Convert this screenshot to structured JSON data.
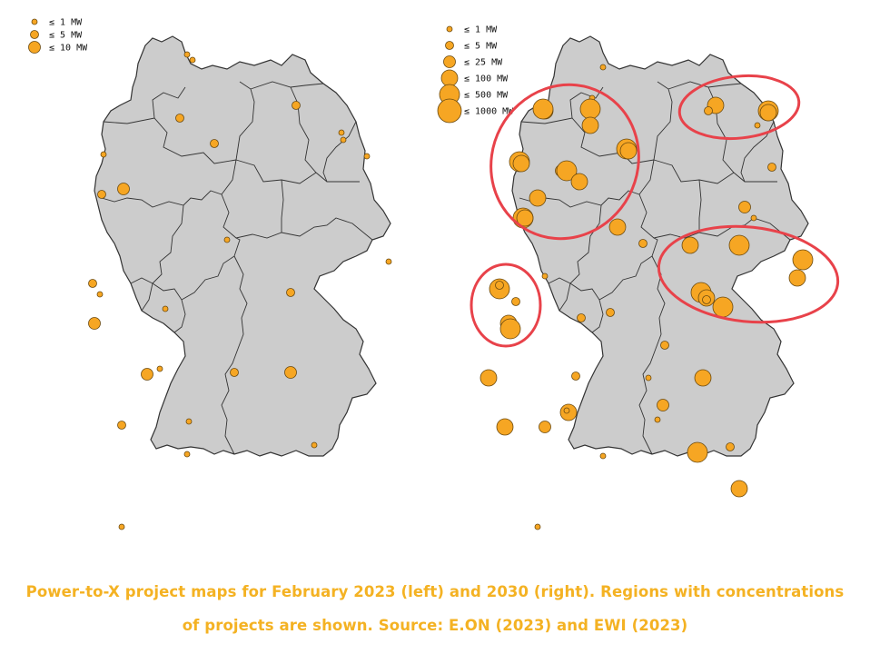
{
  "colors": {
    "land": "#cccccc",
    "border": "#333333",
    "marker_fill": "#f6a623",
    "marker_stroke": "#6b4a10",
    "highlight": "#e8424a",
    "caption": "#f4b223"
  },
  "left_map": {
    "legend": [
      {
        "label": "≤ 1 MW",
        "size": 1
      },
      {
        "label": "≤ 5 MW",
        "size": 2
      },
      {
        "label": "≤ 10 MW",
        "size": 3
      }
    ],
    "project_count": 27
  },
  "right_map": {
    "legend": [
      {
        "label": "≤ 1 MW",
        "size": 1
      },
      {
        "label": "≤ 5 MW",
        "size": 2
      },
      {
        "label": "≤ 25 MW",
        "size": 3
      },
      {
        "label": "≤ 100 MW",
        "size": 4
      },
      {
        "label": "≤ 500 MW",
        "size": 5
      },
      {
        "label": "≤ 1000 MW",
        "size": 6
      }
    ],
    "project_count": 58,
    "highlighted_regions": 4
  },
  "caption": {
    "line1": "Power-to-X project maps for February 2023 (left) and 2030 (right). Regions with concentrations",
    "line2": "of projects are shown. Source: E.ON (2023) and EWI (2023)"
  }
}
